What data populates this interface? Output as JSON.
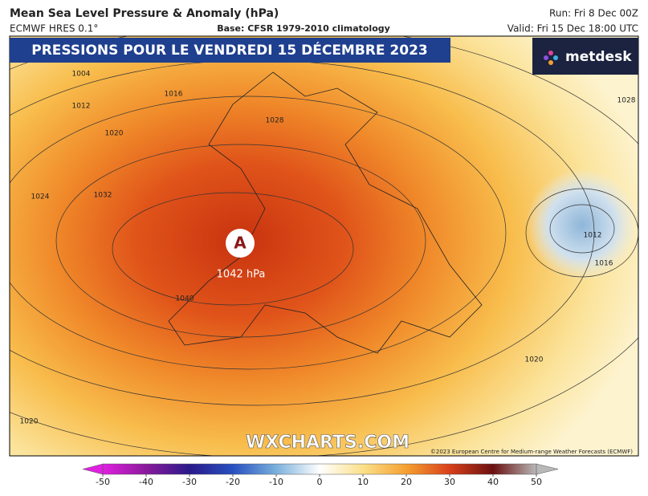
{
  "header": {
    "title": "Mean Sea Level Pressure & Anomaly (hPa)",
    "model": "ECMWF HRES 0.1°",
    "base": "Base: CFSR 1979-2010 climatology",
    "run": "Run: Fri 8 Dec 00Z",
    "valid": "Valid: Fri 15 Dec 18:00 UTC"
  },
  "banner": "PRESSIONS POUR LE VENDREDI 15 DÉCEMBRE 2023",
  "logo": "metdesk",
  "high": {
    "symbol": "A",
    "label": "1042 hPa"
  },
  "isobar_labels": [
    1004,
    1012,
    1016,
    1020,
    1024,
    1032,
    1028,
    1040,
    1028,
    1012,
    1016,
    1020,
    1020
  ],
  "watermark": "WXCHARTS.COM",
  "copyright": "©2023 European Centre for Medium-range Weather Forecasts (ECMWF)",
  "colorbar": {
    "lim": [
      -50,
      50
    ],
    "ticks": [
      -50,
      -40,
      -30,
      -20,
      -10,
      0,
      10,
      20,
      30,
      40,
      50
    ]
  }
}
